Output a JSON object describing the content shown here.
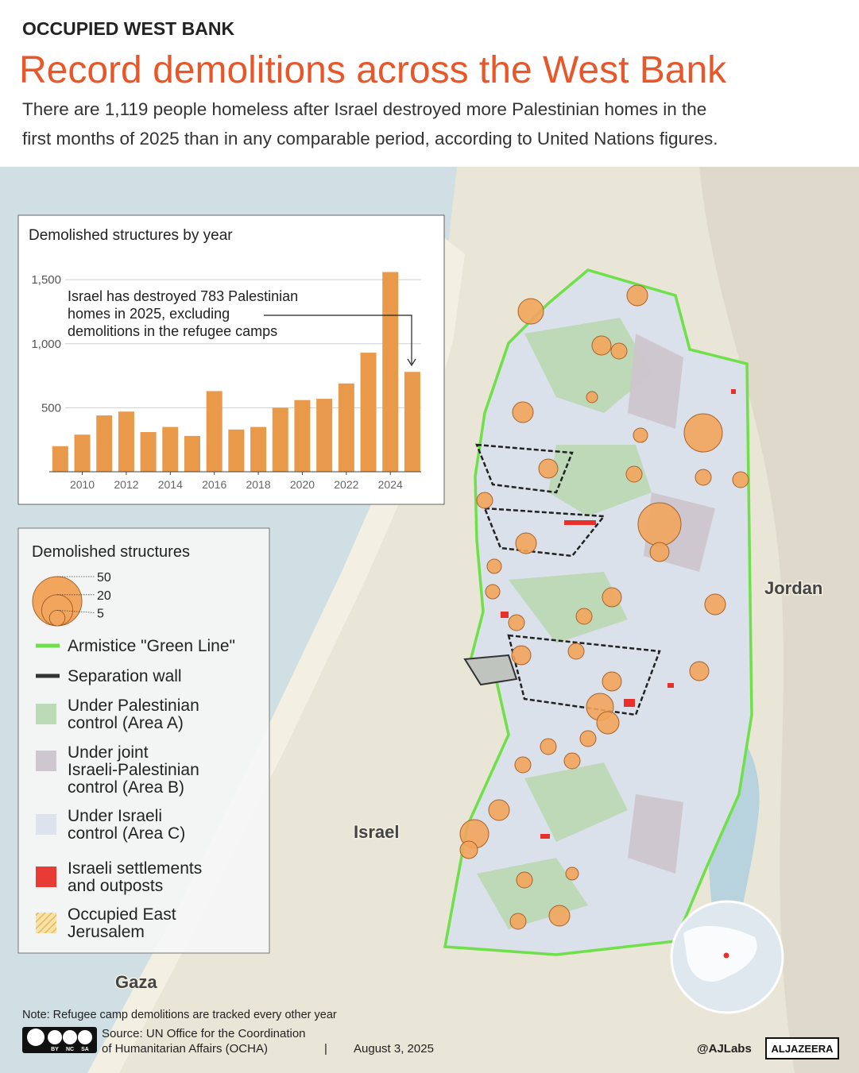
{
  "header": {
    "kicker": "OCCUPIED WEST BANK",
    "title": "Record demolitions across the West Bank",
    "subtitle_lines": [
      "There are 1,119 people homeless after Israel destroyed more Palestinian homes in the",
      "first months of 2025 than in any comparable period, according to United Nations figures."
    ]
  },
  "chart_data": {
    "type": "bar",
    "title": "Demolished structures by year",
    "x": [
      2009,
      2010,
      2011,
      2012,
      2013,
      2014,
      2015,
      2016,
      2017,
      2018,
      2019,
      2020,
      2021,
      2022,
      2023,
      2024,
      2025
    ],
    "values": [
      200,
      290,
      440,
      470,
      310,
      350,
      280,
      630,
      330,
      350,
      500,
      560,
      570,
      690,
      930,
      1560,
      780
    ],
    "color": "#e8994a",
    "xlim": [
      2008.5,
      2025.4
    ],
    "ylim": [
      0,
      1650
    ],
    "xticks": [
      2010,
      2012,
      2014,
      2016,
      2018,
      2020,
      2022,
      2024
    ],
    "yticks": [
      500,
      {
        "value": 1000,
        "label": "1,000"
      },
      {
        "value": 1500,
        "label": "1,500"
      }
    ],
    "grid": true,
    "annotation_lines": [
      "Israel has destroyed 783 Palestinian",
      "homes in 2025, excluding",
      "demolitions in the refugee camps"
    ]
  },
  "legend": {
    "title": "Demolished structures",
    "sizes": [
      50,
      20,
      5
    ],
    "items": [
      {
        "label": [
          "Armistice \"Green Line\""
        ],
        "style": "line",
        "color": "#6fe04a"
      },
      {
        "label": [
          "Separation wall"
        ],
        "style": "line",
        "color": "#333333"
      },
      {
        "label": [
          "Under Palestinian",
          "control (Area A)"
        ],
        "style": "fill",
        "color": "#b9d8b2"
      },
      {
        "label": [
          "Under joint",
          "Israeli-Palestinian",
          "control (Area B)"
        ],
        "style": "fill",
        "color": "#ccc4cc"
      },
      {
        "label": [
          "Under Israeli",
          "control (Area C)"
        ],
        "style": "fill",
        "color": "#dae2ec"
      },
      {
        "label": [
          "Israeli settlements",
          "and outposts"
        ],
        "style": "fill",
        "color": "#e8302a"
      },
      {
        "label": [
          "Occupied East",
          "Jerusalem"
        ],
        "style": "hatch",
        "color": "#f0c060"
      }
    ]
  },
  "map_labels": [
    "Jordan",
    "Israel",
    "Gaza"
  ],
  "footer": {
    "note": "Note: Refugee camp demolitions are tracked every other year",
    "cc": [
      "BY",
      "NC",
      "SA"
    ],
    "source_lines": [
      "Source:  UN Office for the Coordination",
      "of Humanitarian Affairs (OCHA)"
    ],
    "separator": "|",
    "date": "August 3, 2025",
    "handle": "@AJLabs",
    "logo": "ALJAZEERA"
  }
}
